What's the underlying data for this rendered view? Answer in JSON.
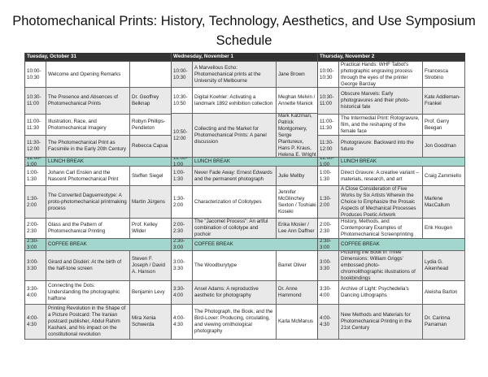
{
  "title": "Photomechanical Prints: History, Technology, Aesthetics, and Use Symposium Schedule",
  "colors": {
    "header": "#333333",
    "break": "#a3d6cc",
    "shaded": "#e9e9e9"
  },
  "days": [
    {
      "name": "Tuesday, October 31",
      "sessions": [
        {
          "time": "10:00-10:30",
          "title": "Welcome and Opening Remarks",
          "speaker": ""
        },
        {
          "time": "10:30-11:00",
          "title": "The Presence and Absences of Photomechanical Prints",
          "speaker": "Dr. Geoffrey Belknap"
        },
        {
          "time": "11:00-11:30",
          "title": "Illustration, Race, and Photomechanical Imagery",
          "speaker": "Robyn Phillips-Pendleton"
        },
        {
          "time": "11:30-12:00",
          "title": "The Photomechanical Print as Facsimile in the Early 20th Century",
          "speaker": "Rebecca Capua"
        },
        {
          "time": "12:00-1:00",
          "title": "LUNCH BREAK",
          "break": true
        },
        {
          "time": "1:00-1:30",
          "title": "Johann Carl Enslen and the Nascent Photomechanical Print",
          "speaker": "Steffen Siegel"
        },
        {
          "time": "1:30-2:00",
          "title": "The Converted Daguerreotype: A proto-photomechanical printmaking process",
          "speaker": "Martin Jürgens"
        },
        {
          "time": "2:00-2:30",
          "title": "Glass and the Pattern of Photomechanical Printing",
          "speaker": "Prof. Kelley Wilder"
        },
        {
          "time": "2:30-3:00",
          "title": "COFFEE BREAK",
          "break": true
        },
        {
          "time": "3:00-3:30",
          "title": "Girard and Disdéri: At the birth of the half-tone screen",
          "speaker": "Steven F. Joseph / David A. Hanson"
        },
        {
          "time": "3:30-4:00",
          "title": "Connecting the Dots: Understanding the photographic halftone",
          "speaker": "Benjamin Levy"
        },
        {
          "time": "4:00-4:30",
          "title": "Printing Revolution in the Shape of a Picture Postcard: The Iranian postcard publisher, Abdul Rahim Kashani, and his impact on the constitutional revolution",
          "speaker": "Mira Xenia Schwerda"
        }
      ]
    },
    {
      "name": "Wednesday, November 1",
      "sessions": [
        {
          "time": "10:00-10:30",
          "title": "A Marvellous Echo: Photomechanical prints at the University of Melbourne",
          "speaker": "Jane Brown"
        },
        {
          "time": "10:30-10:50",
          "title": "Digital Koehler: Activating a landmark 1892 exhibition collection",
          "speaker": "Meghan Melvin / Annette Manick"
        },
        {
          "time": "10:50-12:00",
          "title": "Collecting and the Market for Photomechanical Prints: A panel discussion",
          "speaker": "Mark Katzman, Patrick Montgomery, Serge Plantureux, Hans P. Kraus, Helena E. Wright"
        },
        {
          "time": "12:00-1:00",
          "title": "LUNCH BREAK",
          "break": true
        },
        {
          "time": "1:00-1:30",
          "title": "Never Fade Away: Ernest Edwards and the permanent photograph",
          "speaker": "Julie Mellby"
        },
        {
          "time": "1:30-2:00",
          "title": "Characterization of Collotypes",
          "speaker": "Jennifer McGlinchey Sexton / Toshiaki Koseki"
        },
        {
          "time": "2:00-2:30",
          "title": "The \"Jacomet Process\": An artful combination of collotype and pochoir",
          "speaker": "Erika Mosier / Lee Ann Daffner"
        },
        {
          "time": "2:30-3:00",
          "title": "COFFEE BREAK",
          "break": true
        },
        {
          "time": "3:00-3:30",
          "title": "The Woodburytype",
          "speaker": "Barret Oliver"
        },
        {
          "time": "3:30-4:00",
          "title": "Ansel Adams: A reproductive aesthetic for photography",
          "speaker": "Dr. Anne Hammond"
        },
        {
          "time": "4:00-4:30",
          "title": "The Photograph, the Book, and the Bird-Lover: Producing, circulating, and viewing ornithological photography",
          "speaker": "Karla McManus"
        }
      ]
    },
    {
      "name": "Thursday, November 2",
      "sessions": [
        {
          "time": "10:00-10:30",
          "title": "Practical Hands: WHF Talbot's photographic engraving process through the eyes of the printer George Barclay",
          "speaker": "Francesca Strobino"
        },
        {
          "time": "10:30-11:00",
          "title": "Obscure Marvels: Early photogravures and their photo-historical fate",
          "speaker": "Kate Addleman-Frankel"
        },
        {
          "time": "11:00-11:30",
          "title": "The Intermedial Print: Rotogravure, film, and the reshaping of the female face",
          "speaker": "Prof. Gerry Beegan"
        },
        {
          "time": "11:30-12:00",
          "title": "Photogravure: Backward into the future",
          "speaker": "Jon Goodman"
        },
        {
          "time": "12:00-1:00",
          "title": "LUNCH BREAK",
          "break": true
        },
        {
          "time": "1:00-1:30",
          "title": "Direct Gravure:  A creative variant – materials, research, and art",
          "speaker": "Craig Zammiello"
        },
        {
          "time": "1:30-2:00",
          "title": "A Close Consideration of Five Works by Six Artists Wherein the Choice to Emphasize the Prosaic Aspects of Mechanical Processes Produces Poetic Artwork",
          "speaker": "Marlene MacCallum"
        },
        {
          "time": "2:00-2:30",
          "title": "History, Methods, and Contemporary Examples of Photomechanical Screenprinting",
          "speaker": "Erik Hougen"
        },
        {
          "time": "2:30-3:00",
          "title": "COFFEE BREAK",
          "break": true
        },
        {
          "time": "3:00-3:30",
          "title": "Picturing the Book in Three Dimensions: William Griggs' embossed photo-chromolithographic illustrations of bookbindings",
          "speaker": "Lydia G. Aikenhead"
        },
        {
          "time": "3:30-4:00",
          "title": "Archive of Light: Psychedelia's Dancing Lithographs",
          "speaker": "Aleisha Barton"
        },
        {
          "time": "4:00-4:30",
          "title": "New Methods and Materials for Photomechanical Printing in the 21st Century",
          "speaker": "Dr. Carinna Parraman"
        }
      ]
    }
  ]
}
